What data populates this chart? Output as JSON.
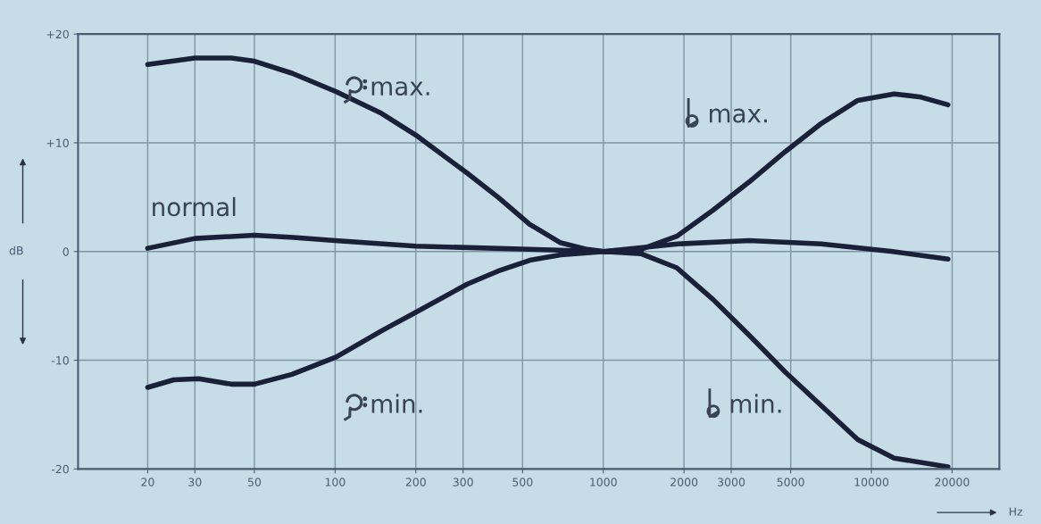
{
  "chart_data": {
    "type": "line",
    "ylabel": "dB",
    "xlabel": "Hz",
    "log": "x",
    "xlim": [
      11,
      30000
    ],
    "ylim": [
      -20,
      20
    ],
    "xticks": [
      20,
      30,
      50,
      100,
      200,
      300,
      500,
      1000,
      2000,
      3000,
      5000,
      10000,
      20000
    ],
    "yticks": [
      {
        "value": 20,
        "label": "+20"
      },
      {
        "value": 10,
        "label": "+10"
      },
      0,
      -10,
      -20
    ],
    "grid": true,
    "legend": false,
    "marker": "none",
    "line_style": "solid",
    "series": [
      {
        "name": "normal",
        "color": "#1a1f3a",
        "x": [
          20,
          30,
          50,
          70,
          100,
          200,
          530,
          1000,
          1900,
          3500,
          6500,
          12000,
          19300
        ],
        "values": [
          0.3,
          1.2,
          1.5,
          1.3,
          1.0,
          0.5,
          0.2,
          0,
          0.7,
          1.0,
          0.7,
          0,
          -0.7
        ]
      },
      {
        "name": "max.",
        "color": "#1a1f3a",
        "x": [
          20,
          30,
          41,
          50,
          69,
          101,
          149,
          203,
          311,
          405,
          532,
          694,
          871,
          1010,
          1380
        ],
        "values": [
          17.2,
          17.8,
          17.8,
          17.5,
          16.4,
          14.7,
          12.7,
          10.6,
          7.2,
          5,
          2.5,
          0.8,
          0.2,
          0,
          0
        ]
      },
      {
        "name": "min.",
        "color": "#1a1f3a",
        "x": [
          20,
          25,
          31,
          41,
          50,
          69,
          101,
          149,
          203,
          311,
          405,
          532,
          694,
          1010,
          1380
        ],
        "values": [
          -12.5,
          -11.8,
          -11.7,
          -12.2,
          -12.2,
          -11.3,
          -9.7,
          -7.3,
          -5.5,
          -3,
          -1.8,
          -0.8,
          -0.3,
          0,
          0
        ]
      },
      {
        "name": "max.",
        "color": "#1a1f3a",
        "x": [
          1010,
          1380,
          1880,
          2565,
          3500,
          4780,
          6520,
          8900,
          12150,
          15300,
          19300
        ],
        "values": [
          0,
          0.2,
          1.4,
          3.8,
          6.4,
          9.2,
          11.8,
          13.9,
          14.5,
          14.2,
          13.5
        ]
      },
      {
        "name": "min.",
        "color": "#1a1f3a",
        "x": [
          1010,
          1380,
          1880,
          2565,
          3500,
          4780,
          6520,
          8900,
          12150,
          19300
        ],
        "values": [
          0,
          -0.2,
          -1.5,
          -4.4,
          -7.7,
          -11.1,
          -14.2,
          -17.3,
          -19,
          -19.8
        ]
      }
    ]
  }
}
